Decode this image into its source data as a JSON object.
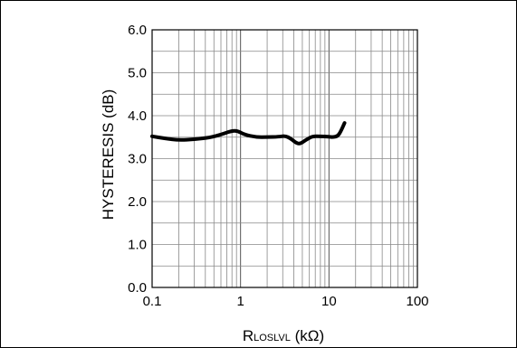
{
  "chart_data": {
    "type": "line",
    "xscale": "log",
    "xlim": [
      0.1,
      100
    ],
    "ylim": [
      0.0,
      6.0
    ],
    "xticks": [
      0.1,
      1,
      10,
      100
    ],
    "xtick_labels": [
      "0.1",
      "1",
      "10",
      "100"
    ],
    "yticks": [
      0,
      1,
      2,
      3,
      4,
      5,
      6
    ],
    "ytick_labels": [
      "0.0",
      "1.0",
      "2.0",
      "3.0",
      "4.0",
      "5.0",
      "6.0"
    ],
    "xlabel_main": "R",
    "xlabel_sub": "LOSLVL",
    "xlabel_unit": " (kΩ)",
    "ylabel": "HYSTERESIS (dB)",
    "grid": true,
    "series": [
      {
        "color": "#000000",
        "x": [
          0.1,
          0.14,
          0.2,
          0.3,
          0.45,
          0.6,
          0.75,
          0.9,
          1.1,
          1.5,
          2.0,
          2.7,
          3.2,
          3.7,
          4.2,
          4.7,
          5.5,
          6.5,
          8.0,
          10.0,
          11.0,
          12.5,
          13.5,
          15.0
        ],
        "y": [
          3.52,
          3.47,
          3.43,
          3.45,
          3.49,
          3.56,
          3.63,
          3.66,
          3.56,
          3.5,
          3.5,
          3.51,
          3.53,
          3.47,
          3.37,
          3.34,
          3.44,
          3.52,
          3.52,
          3.51,
          3.5,
          3.52,
          3.62,
          3.83
        ]
      }
    ]
  }
}
